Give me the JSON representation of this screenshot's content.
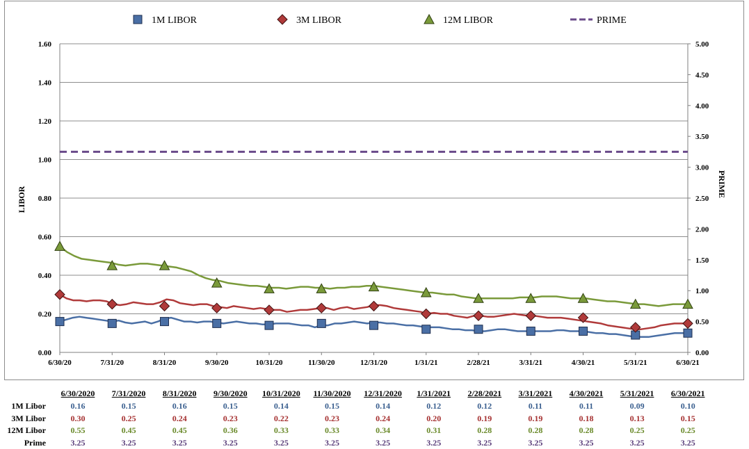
{
  "chart_data": {
    "type": "line",
    "title": "",
    "legend": {
      "placement": "top",
      "items": [
        {
          "name": "1M LIBOR",
          "color": "#4a6fa5",
          "marker": "square"
        },
        {
          "name": "3M LIBOR",
          "color": "#b03a3a",
          "marker": "diamond"
        },
        {
          "name": "12M LIBOR",
          "color": "#7a9a3a",
          "marker": "triangle"
        },
        {
          "name": "PRIME",
          "color": "#6a4a8a",
          "marker": "dashed-line"
        }
      ]
    },
    "ylabel": "LIBOR",
    "y2label": "PRIME",
    "ylim": [
      0,
      1.6
    ],
    "y2lim": [
      0,
      5
    ],
    "yticks": [
      "0.00",
      "0.20",
      "0.40",
      "0.60",
      "0.80",
      "1.00",
      "1.20",
      "1.40",
      "1.60"
    ],
    "y2ticks": [
      "0.00",
      "0.50",
      "1.00",
      "1.50",
      "2.00",
      "2.50",
      "3.00",
      "3.50",
      "4.00",
      "4.50",
      "5.00"
    ],
    "grid": true,
    "x": [
      "6/30/20",
      "7/31/20",
      "8/31/20",
      "9/30/20",
      "10/31/20",
      "11/30/20",
      "12/31/20",
      "1/31/21",
      "2/28/21",
      "3/31/21",
      "4/30/21",
      "5/31/21",
      "6/30/21"
    ],
    "series": [
      {
        "name": "1M LIBOR",
        "axis": "left",
        "color": "#4a6fa5",
        "marker": "square",
        "values": [
          0.16,
          0.15,
          0.16,
          0.15,
          0.14,
          0.15,
          0.14,
          0.12,
          0.12,
          0.11,
          0.11,
          0.09,
          0.1
        ],
        "daily": [
          0.16,
          0.17,
          0.18,
          0.185,
          0.18,
          0.175,
          0.17,
          0.165,
          0.16,
          0.165,
          0.155,
          0.15,
          0.155,
          0.16,
          0.15,
          0.16,
          0.175,
          0.18,
          0.17,
          0.16,
          0.16,
          0.155,
          0.16,
          0.16,
          0.155,
          0.15,
          0.155,
          0.16,
          0.155,
          0.15,
          0.15,
          0.145,
          0.145,
          0.15,
          0.15,
          0.15,
          0.145,
          0.14,
          0.14,
          0.13,
          0.14,
          0.14,
          0.15,
          0.15,
          0.155,
          0.16,
          0.155,
          0.15,
          0.155,
          0.155,
          0.15,
          0.15,
          0.145,
          0.14,
          0.14,
          0.135,
          0.13,
          0.13,
          0.13,
          0.125,
          0.12,
          0.12,
          0.115,
          0.115,
          0.11,
          0.11,
          0.115,
          0.12,
          0.12,
          0.115,
          0.11,
          0.11,
          0.11,
          0.11,
          0.11,
          0.11,
          0.115,
          0.115,
          0.11,
          0.11,
          0.11,
          0.105,
          0.1,
          0.1,
          0.095,
          0.095,
          0.09,
          0.085,
          0.08,
          0.08,
          0.08,
          0.085,
          0.09,
          0.095,
          0.1,
          0.1,
          0.1
        ]
      },
      {
        "name": "3M LIBOR",
        "axis": "left",
        "color": "#b03a3a",
        "marker": "diamond",
        "values": [
          0.3,
          0.25,
          0.24,
          0.23,
          0.22,
          0.23,
          0.24,
          0.2,
          0.19,
          0.19,
          0.18,
          0.13,
          0.15
        ],
        "daily": [
          0.3,
          0.28,
          0.27,
          0.27,
          0.265,
          0.27,
          0.27,
          0.265,
          0.25,
          0.245,
          0.25,
          0.26,
          0.255,
          0.25,
          0.25,
          0.26,
          0.275,
          0.27,
          0.255,
          0.25,
          0.245,
          0.25,
          0.25,
          0.24,
          0.235,
          0.23,
          0.24,
          0.235,
          0.23,
          0.225,
          0.23,
          0.225,
          0.22,
          0.22,
          0.21,
          0.215,
          0.22,
          0.22,
          0.225,
          0.23,
          0.23,
          0.22,
          0.23,
          0.235,
          0.225,
          0.23,
          0.235,
          0.245,
          0.245,
          0.24,
          0.23,
          0.225,
          0.22,
          0.215,
          0.21,
          0.2,
          0.205,
          0.2,
          0.2,
          0.19,
          0.185,
          0.18,
          0.19,
          0.19,
          0.185,
          0.185,
          0.19,
          0.195,
          0.2,
          0.195,
          0.19,
          0.19,
          0.185,
          0.18,
          0.18,
          0.18,
          0.175,
          0.17,
          0.165,
          0.16,
          0.155,
          0.15,
          0.14,
          0.135,
          0.13,
          0.125,
          0.12,
          0.12,
          0.125,
          0.13,
          0.14,
          0.145,
          0.15,
          0.15,
          0.15
        ]
      },
      {
        "name": "12M LIBOR",
        "axis": "left",
        "color": "#7a9a3a",
        "marker": "triangle",
        "values": [
          0.55,
          0.45,
          0.45,
          0.36,
          0.33,
          0.33,
          0.34,
          0.31,
          0.28,
          0.28,
          0.28,
          0.25,
          0.25
        ],
        "daily": [
          0.55,
          0.52,
          0.5,
          0.485,
          0.48,
          0.475,
          0.47,
          0.465,
          0.455,
          0.45,
          0.455,
          0.46,
          0.46,
          0.455,
          0.45,
          0.445,
          0.44,
          0.43,
          0.42,
          0.4,
          0.385,
          0.375,
          0.37,
          0.36,
          0.355,
          0.35,
          0.345,
          0.345,
          0.34,
          0.335,
          0.335,
          0.33,
          0.335,
          0.34,
          0.34,
          0.335,
          0.335,
          0.33,
          0.335,
          0.335,
          0.34,
          0.34,
          0.345,
          0.345,
          0.34,
          0.335,
          0.33,
          0.325,
          0.32,
          0.315,
          0.31,
          0.31,
          0.305,
          0.3,
          0.3,
          0.29,
          0.285,
          0.28,
          0.28,
          0.28,
          0.28,
          0.28,
          0.28,
          0.285,
          0.285,
          0.285,
          0.29,
          0.29,
          0.29,
          0.285,
          0.28,
          0.28,
          0.28,
          0.275,
          0.27,
          0.265,
          0.265,
          0.26,
          0.255,
          0.25,
          0.25,
          0.245,
          0.24,
          0.245,
          0.25,
          0.25,
          0.25
        ]
      },
      {
        "name": "PRIME",
        "axis": "right",
        "color": "#6a4a8a",
        "marker": "none",
        "dash": true,
        "values": [
          3.25,
          3.25,
          3.25,
          3.25,
          3.25,
          3.25,
          3.25,
          3.25,
          3.25,
          3.25,
          3.25,
          3.25,
          3.25
        ]
      }
    ]
  },
  "table": {
    "columns": [
      "6/30/2020",
      "7/31/2020",
      "8/31/2020",
      "9/30/2020",
      "10/31/2020",
      "11/30/2020",
      "12/31/2020",
      "1/31/2021",
      "2/28/2021",
      "3/31/2021",
      "4/30/2021",
      "5/31/2021",
      "6/30/2021"
    ],
    "rows": [
      {
        "label": "1M Libor",
        "color": "#3a5f8f",
        "values": [
          "0.16",
          "0.15",
          "0.16",
          "0.15",
          "0.14",
          "0.15",
          "0.14",
          "0.12",
          "0.12",
          "0.11",
          "0.11",
          "0.09",
          "0.10"
        ]
      },
      {
        "label": "3M Libor",
        "color": "#a53030",
        "values": [
          "0.30",
          "0.25",
          "0.24",
          "0.23",
          "0.22",
          "0.23",
          "0.24",
          "0.20",
          "0.19",
          "0.19",
          "0.18",
          "0.13",
          "0.15"
        ]
      },
      {
        "label": "12M Libor",
        "color": "#6a8a2a",
        "values": [
          "0.55",
          "0.45",
          "0.45",
          "0.36",
          "0.33",
          "0.33",
          "0.34",
          "0.31",
          "0.28",
          "0.28",
          "0.28",
          "0.25",
          "0.25"
        ]
      },
      {
        "label": "Prime",
        "color": "#5a3e7a",
        "values": [
          "3.25",
          "3.25",
          "3.25",
          "3.25",
          "3.25",
          "3.25",
          "3.25",
          "3.25",
          "3.25",
          "3.25",
          "3.25",
          "3.25",
          "3.25"
        ]
      }
    ]
  }
}
